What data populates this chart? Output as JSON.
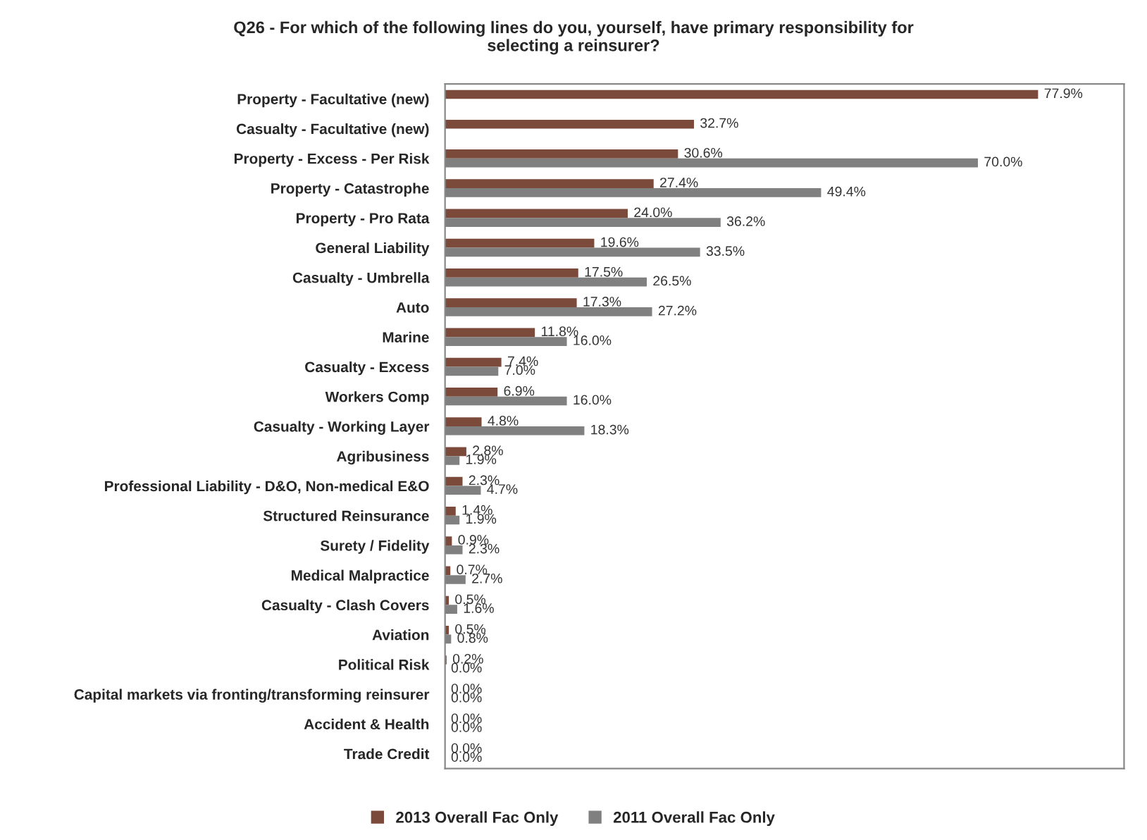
{
  "chart_data": {
    "type": "bar",
    "orientation": "horizontal",
    "title": "Q26 - For which of the following lines do you, yourself, have primary responsibility for\nselecting a reinsurer?",
    "categories": [
      "Property - Facultative (new)",
      "Casualty - Facultative (new)",
      "Property - Excess - Per Risk",
      "Property - Catastrophe",
      "Property - Pro Rata",
      "General Liability",
      "Casualty - Umbrella",
      "Auto",
      "Marine",
      "Casualty - Excess",
      "Workers Comp",
      "Casualty - Working Layer",
      "Agribusiness",
      "Professional Liability - D&O, Non-medical E&O",
      "Structured Reinsurance",
      "Surety / Fidelity",
      "Medical Malpractice",
      "Casualty - Clash Covers",
      "Aviation",
      "Political Risk",
      "Capital markets via fronting/transforming reinsurer",
      "Accident & Health",
      "Trade Credit"
    ],
    "series": [
      {
        "name": "2013 Overall Fac Only",
        "color": "#7b4a3a",
        "values": [
          77.9,
          32.7,
          30.6,
          27.4,
          24.0,
          19.6,
          17.5,
          17.3,
          11.8,
          7.4,
          6.9,
          4.8,
          2.8,
          2.3,
          1.4,
          0.9,
          0.7,
          0.5,
          0.5,
          0.2,
          0.0,
          0.0,
          0.0
        ],
        "value_labels": [
          "77.9%",
          "32.7%",
          "30.6%",
          "27.4%",
          "24.0%",
          "19.6%",
          "17.5%",
          "17.3%",
          "11.8%",
          "7.4%",
          "6.9%",
          "4.8%",
          "2.8%",
          "2.3%",
          "1.4%",
          "0.9%",
          "0.7%",
          "0.5%",
          "0.5%",
          "0.2%",
          "0.0%",
          "0.0%",
          "0.0%"
        ]
      },
      {
        "name": "2011 Overall Fac Only",
        "color": "#808080",
        "values": [
          null,
          null,
          70.0,
          49.4,
          36.2,
          33.5,
          26.5,
          27.2,
          16.0,
          7.0,
          16.0,
          18.3,
          1.9,
          4.7,
          1.9,
          2.3,
          2.7,
          1.6,
          0.8,
          0.0,
          0.0,
          0.0,
          0.0
        ],
        "value_labels": [
          null,
          null,
          "70.0%",
          "49.4%",
          "36.2%",
          "33.5%",
          "26.5%",
          "27.2%",
          "16.0%",
          "7.0%",
          "16.0%",
          "18.3%",
          "1.9%",
          "4.7%",
          "1.9%",
          "2.3%",
          "2.7%",
          "1.6%",
          "0.8%",
          "0.0%",
          "0.0%",
          "0.0%",
          "0.0%"
        ]
      }
    ],
    "grid": false,
    "legend": "bottom"
  }
}
